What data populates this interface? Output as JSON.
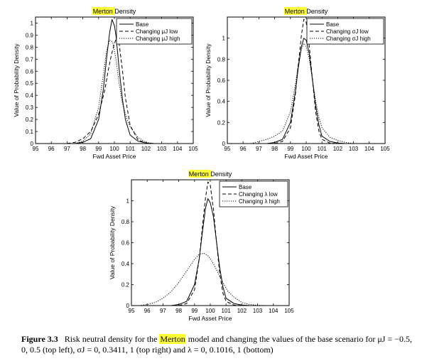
{
  "caption": {
    "label": "Figure 3.3",
    "text_before": "Risk neutral density for the",
    "highlight": "Merton",
    "text_after_1": "model and changing the values of the base scenario for",
    "text_after_2": "μJ = −0.5, 0, 0.5 (top left), σJ = 0, 0.3411, 1 (top right) and λ = 0, 0.1016, 1 (bottom)"
  },
  "highlight_color": "#ffff33",
  "chart_data": [
    {
      "type": "line",
      "title": "Merton Density",
      "title_highlight": "Merton",
      "title_rest": " Density",
      "xlabel": "Fwd Asset Price",
      "ylabel": "Value of Probability Density",
      "xlim": [
        95,
        105
      ],
      "ylim": [
        0,
        1.05
      ],
      "xticks": [
        95,
        96,
        97,
        98,
        99,
        100,
        101,
        102,
        103,
        104,
        105
      ],
      "xtick_labels": [
        "95",
        "96",
        "97",
        "98",
        "99",
        "100",
        "101",
        "102",
        "103",
        "104",
        "105"
      ],
      "yticks": [
        0,
        0.1,
        0.2,
        0.3,
        0.4,
        0.5,
        0.6,
        0.7,
        0.8,
        0.9,
        1
      ],
      "ytick_labels": [
        "0",
        "0.1",
        "0.2",
        "0.3",
        "0.4",
        "0.5",
        "0.6",
        "0.7",
        "0.8",
        "0.9",
        "1"
      ],
      "legend_placement": "top-right",
      "grid": false,
      "series": [
        {
          "name": "Base",
          "style": "solid",
          "x": [
            97.5,
            98.0,
            98.5,
            99.0,
            99.3,
            99.5,
            99.7,
            99.85,
            100.0,
            100.1,
            100.3,
            100.5,
            100.7,
            101.0,
            101.5,
            102.0,
            102.5
          ],
          "y": [
            0.0,
            0.01,
            0.04,
            0.2,
            0.45,
            0.7,
            0.92,
            1.03,
            0.98,
            0.9,
            0.62,
            0.38,
            0.2,
            0.07,
            0.02,
            0.005,
            0.0
          ]
        },
        {
          "name": "Changing μJ low",
          "style": "dashed",
          "x": [
            97.0,
            97.5,
            98.0,
            98.5,
            99.0,
            99.4,
            99.6,
            99.8,
            100.0,
            100.15,
            100.3,
            100.5,
            100.7,
            101.0,
            101.5,
            102.0,
            102.5
          ],
          "y": [
            0.0,
            0.01,
            0.04,
            0.1,
            0.24,
            0.45,
            0.6,
            0.73,
            0.83,
            0.88,
            0.83,
            0.62,
            0.38,
            0.15,
            0.03,
            0.005,
            0.0
          ]
        },
        {
          "name": "Changing μJ high",
          "style": "dotted",
          "x": [
            97.5,
            98.0,
            98.5,
            99.0,
            99.3,
            99.5,
            99.7,
            99.9,
            100.1,
            100.3,
            100.5,
            100.8,
            101.0,
            101.5,
            102.0,
            102.5
          ],
          "y": [
            0.0,
            0.02,
            0.08,
            0.3,
            0.57,
            0.77,
            0.86,
            0.84,
            0.7,
            0.5,
            0.34,
            0.2,
            0.14,
            0.05,
            0.01,
            0.0
          ]
        }
      ]
    },
    {
      "type": "line",
      "title": "Merton Density",
      "title_highlight": "Merton",
      "title_rest": " Density",
      "xlabel": "Fwd Asset Price",
      "ylabel": "Value of Probability Density",
      "xlim": [
        95,
        105
      ],
      "ylim": [
        0,
        1.2
      ],
      "xticks": [
        95,
        96,
        97,
        98,
        99,
        100,
        101,
        102,
        103,
        104,
        105
      ],
      "xtick_labels": [
        "95",
        "96",
        "97",
        "98",
        "99",
        "100",
        "101",
        "102",
        "103",
        "104",
        "105"
      ],
      "yticks": [
        0,
        0.2,
        0.4,
        0.6,
        0.8,
        1
      ],
      "ytick_labels": [
        "0",
        "0.2",
        "0.4",
        "0.6",
        "0.8",
        "1"
      ],
      "legend_placement": "top-right",
      "grid": false,
      "series": [
        {
          "name": "Base",
          "style": "solid",
          "x": [
            97.5,
            98.0,
            98.5,
            99.0,
            99.3,
            99.5,
            99.7,
            99.85,
            100.0,
            100.2,
            100.4,
            100.6,
            100.8,
            101.0,
            101.5,
            102.0,
            102.5
          ],
          "y": [
            0.0,
            0.01,
            0.04,
            0.2,
            0.48,
            0.72,
            0.92,
            1.0,
            0.98,
            0.85,
            0.6,
            0.36,
            0.18,
            0.07,
            0.02,
            0.005,
            0.0
          ]
        },
        {
          "name": "Changing σJ low",
          "style": "dashed",
          "x": [
            98.0,
            98.5,
            99.0,
            99.3,
            99.5,
            99.7,
            99.85,
            100.0,
            100.2,
            100.4,
            100.6,
            100.8,
            101.0,
            101.5,
            102.0
          ],
          "y": [
            0.0,
            0.02,
            0.15,
            0.45,
            0.75,
            1.03,
            1.18,
            1.15,
            0.92,
            0.6,
            0.3,
            0.12,
            0.04,
            0.005,
            0.0
          ]
        },
        {
          "name": "Changing σJ high",
          "style": "dotted",
          "x": [
            96.5,
            97.0,
            97.5,
            98.0,
            98.5,
            99.0,
            99.3,
            99.5,
            99.7,
            99.85,
            100.0,
            100.2,
            100.4,
            100.6,
            100.8,
            101.0,
            101.5,
            102.0,
            102.5,
            103.0
          ],
          "y": [
            0.0,
            0.02,
            0.04,
            0.07,
            0.12,
            0.3,
            0.55,
            0.75,
            0.9,
            0.95,
            0.92,
            0.8,
            0.6,
            0.4,
            0.25,
            0.15,
            0.06,
            0.03,
            0.01,
            0.0
          ]
        }
      ]
    },
    {
      "type": "line",
      "title": "Merton Density",
      "title_highlight": "Merton",
      "title_rest": " Density",
      "xlabel": "Fwd Asset Price",
      "ylabel": "Value of Probability Density",
      "xlim": [
        95,
        105
      ],
      "ylim": [
        0,
        1.2
      ],
      "xticks": [
        95,
        96,
        97,
        98,
        99,
        100,
        101,
        102,
        103,
        104,
        105
      ],
      "xtick_labels": [
        "95",
        "96",
        "97",
        "98",
        "99",
        "100",
        "101",
        "102",
        "103",
        "104",
        "105"
      ],
      "yticks": [
        0,
        0.2,
        0.4,
        0.6,
        0.8,
        1
      ],
      "ytick_labels": [
        "0",
        "0.2",
        "0.4",
        "0.6",
        "0.8",
        "1"
      ],
      "legend_placement": "top-right",
      "grid": false,
      "series": [
        {
          "name": "Base",
          "style": "solid",
          "x": [
            97.5,
            98.0,
            98.5,
            99.0,
            99.3,
            99.5,
            99.7,
            99.85,
            100.0,
            100.2,
            100.4,
            100.6,
            100.8,
            101.0,
            101.5,
            102.0,
            102.5
          ],
          "y": [
            0.0,
            0.01,
            0.04,
            0.2,
            0.45,
            0.7,
            0.93,
            1.02,
            0.98,
            0.85,
            0.6,
            0.36,
            0.18,
            0.07,
            0.02,
            0.005,
            0.0
          ]
        },
        {
          "name": "Changing λ low",
          "style": "dashed",
          "x": [
            98.0,
            98.5,
            99.0,
            99.3,
            99.5,
            99.7,
            99.85,
            100.0,
            100.2,
            100.4,
            100.6,
            100.8,
            101.0,
            101.5,
            102.0
          ],
          "y": [
            0.0,
            0.02,
            0.15,
            0.45,
            0.75,
            1.03,
            1.18,
            1.15,
            0.92,
            0.6,
            0.3,
            0.12,
            0.04,
            0.005,
            0.0
          ]
        },
        {
          "name": "Changing λ high",
          "style": "dotted",
          "x": [
            95.5,
            96.0,
            96.5,
            97.0,
            97.5,
            98.0,
            98.5,
            99.0,
            99.3,
            99.6,
            99.9,
            100.2,
            100.5,
            100.8,
            101.1,
            101.5,
            102.0,
            102.5,
            103.0,
            103.5
          ],
          "y": [
            0.0,
            0.01,
            0.03,
            0.07,
            0.13,
            0.22,
            0.33,
            0.44,
            0.49,
            0.5,
            0.47,
            0.4,
            0.31,
            0.22,
            0.14,
            0.08,
            0.03,
            0.01,
            0.003,
            0.0
          ]
        }
      ]
    }
  ]
}
